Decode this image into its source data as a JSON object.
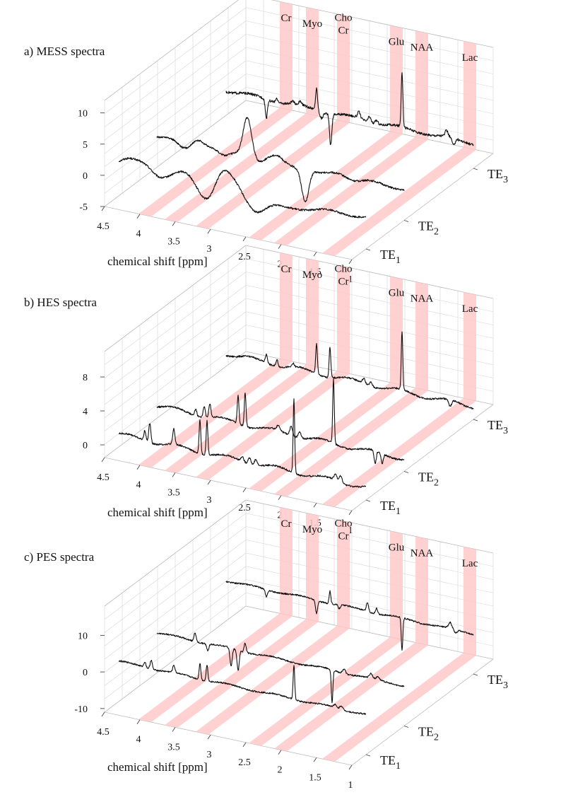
{
  "colors": {
    "band": "#ffc9c9",
    "line": "#111111",
    "grid": "#d6d6d6"
  },
  "te_labels": [
    {
      "base": "TE",
      "sub": "1"
    },
    {
      "base": "TE",
      "sub": "2"
    },
    {
      "base": "TE",
      "sub": "3"
    }
  ],
  "x_label": "chemical shift [ppm]",
  "x_ticks": [
    {
      "v": 4.5,
      "label": "4.5"
    },
    {
      "v": 4.0,
      "label": "4"
    },
    {
      "v": 3.5,
      "label": "3.5"
    },
    {
      "v": 3.0,
      "label": "3"
    },
    {
      "v": 2.5,
      "label": "2.5"
    },
    {
      "v": 2.0,
      "label": "2"
    },
    {
      "v": 1.5,
      "label": "1.5"
    },
    {
      "v": 1.0,
      "label": "1"
    }
  ],
  "metabolites": [
    {
      "name": "Cr",
      "ppm": 3.93,
      "label": "Cr"
    },
    {
      "name": "Myo",
      "ppm": 3.56,
      "label": "Myo"
    },
    {
      "name": "ChoCr",
      "ppm": 3.12,
      "label_top": "Cho",
      "label": "Cr"
    },
    {
      "name": "Glu",
      "ppm": 2.37,
      "label": "Glu"
    },
    {
      "name": "NAA",
      "ppm": 2.01,
      "label": "NAA"
    },
    {
      "name": "Lac",
      "ppm": 1.33,
      "label": "Lac"
    }
  ],
  "chart_data": [
    {
      "type": "line",
      "title": "a) MESS spectra",
      "xlabel": "chemical shift [ppm]",
      "xlim": [
        4.5,
        1.0
      ],
      "zlim": [
        -5,
        12
      ],
      "z_ticks": [
        {
          "v": 10,
          "label": "10"
        },
        {
          "v": 5,
          "label": "5"
        },
        {
          "v": 0,
          "label": "0"
        },
        {
          "v": -5,
          "label": "-5"
        }
      ],
      "series": [
        {
          "name": "TE1",
          "offset": 0,
          "noise": 0.15,
          "peaks": [
            [
              4.35,
              1.0,
              0.12
            ],
            [
              4.1,
              1.3,
              0.12
            ],
            [
              3.95,
              -0.9,
              0.12
            ],
            [
              3.55,
              1.0,
              0.12
            ],
            [
              3.25,
              -2.5,
              0.12
            ],
            [
              3.05,
              2.0,
              0.1
            ],
            [
              2.9,
              1.4,
              0.12
            ],
            [
              2.55,
              -2.5,
              0.14
            ],
            [
              2.2,
              -1.0,
              0.18
            ],
            [
              1.8,
              -0.5,
              0.2
            ]
          ]
        },
        {
          "name": "TE2",
          "offset": 0,
          "noise": 0.15,
          "peaks": [
            [
              4.1,
              -1.2,
              0.1
            ],
            [
              3.93,
              1.2,
              0.09
            ],
            [
              3.55,
              -1.0,
              0.08
            ],
            [
              3.22,
              6.3,
              0.06
            ],
            [
              3.05,
              -0.6,
              0.06
            ],
            [
              2.8,
              0.8,
              0.08
            ],
            [
              2.4,
              -5.2,
              0.05
            ],
            [
              2.2,
              -0.5,
              0.1
            ],
            [
              1.9,
              0.4,
              0.1
            ],
            [
              1.7,
              -0.3,
              0.1
            ]
          ]
        },
        {
          "name": "TE3",
          "offset": -1,
          "noise": 0.2,
          "peaks": [
            [
              3.93,
              -3.0,
              0.015
            ],
            [
              3.78,
              0.6,
              0.02
            ],
            [
              3.56,
              0.4,
              0.02
            ],
            [
              3.45,
              0.5,
              0.02
            ],
            [
              3.22,
              3.5,
              0.014
            ],
            [
              3.15,
              -1.0,
              0.02
            ],
            [
              3.02,
              -5.0,
              0.016
            ],
            [
              2.62,
              1.0,
              0.02
            ],
            [
              2.47,
              0.9,
              0.02
            ],
            [
              2.37,
              0.6,
              0.02
            ],
            [
              2.01,
              8.8,
              0.012
            ],
            [
              1.38,
              0.9,
              0.02
            ],
            [
              1.28,
              -1.2,
              0.02
            ]
          ]
        }
      ]
    },
    {
      "type": "line",
      "title": "b) HES spectra",
      "xlabel": "chemical shift [ppm]",
      "xlim": [
        4.5,
        1.0
      ],
      "zlim": [
        -1.5,
        11
      ],
      "z_ticks": [
        {
          "v": 8,
          "label": "8"
        },
        {
          "v": 4,
          "label": "4"
        },
        {
          "v": 0,
          "label": "0"
        }
      ],
      "series": [
        {
          "name": "TE1",
          "offset": 0,
          "noise": 0.1,
          "peaks": [
            [
              4.13,
              1.2,
              0.015
            ],
            [
              4.06,
              2.3,
              0.015
            ],
            [
              3.72,
              1.8,
              0.015
            ],
            [
              3.35,
              4.0,
              0.012
            ],
            [
              3.25,
              4.0,
              0.012
            ],
            [
              2.75,
              0.6,
              0.02
            ],
            [
              2.65,
              0.8,
              0.02
            ],
            [
              2.56,
              0.7,
              0.02
            ],
            [
              2.02,
              8.7,
              0.011
            ],
            [
              1.43,
              0.7,
              0.02
            ],
            [
              1.36,
              0.8,
              0.02
            ]
          ]
        },
        {
          "name": "TE2",
          "offset": 0,
          "noise": 0.1,
          "peaks": [
            [
              3.95,
              0.8,
              0.015
            ],
            [
              3.83,
              1.3,
              0.015
            ],
            [
              3.75,
              1.6,
              0.015
            ],
            [
              3.35,
              3.3,
              0.012
            ],
            [
              3.25,
              4.0,
              0.012
            ],
            [
              2.78,
              0.6,
              0.02
            ],
            [
              2.6,
              1.1,
              0.02
            ],
            [
              2.48,
              0.8,
              0.02
            ],
            [
              2.0,
              7.6,
              0.011
            ],
            [
              1.41,
              -1.5,
              0.015
            ],
            [
              1.31,
              -1.2,
              0.015
            ]
          ]
        },
        {
          "name": "TE3",
          "offset": 0,
          "noise": 0.1,
          "peaks": [
            [
              3.93,
              1.0,
              0.015
            ],
            [
              3.78,
              0.8,
              0.015
            ],
            [
              3.55,
              0.4,
              0.015
            ],
            [
              3.22,
              3.6,
              0.012
            ],
            [
              3.03,
              3.6,
              0.012
            ],
            [
              2.55,
              0.6,
              0.02
            ],
            [
              2.45,
              0.5,
              0.02
            ],
            [
              2.01,
              6.8,
              0.011
            ],
            [
              1.33,
              -0.8,
              0.02
            ]
          ]
        }
      ]
    },
    {
      "type": "line",
      "title": "c) PES spectra",
      "xlabel": "chemical shift [ppm]",
      "xlim": [
        4.5,
        1.0
      ],
      "zlim": [
        -11,
        18
      ],
      "z_ticks": [
        {
          "v": 10,
          "label": "10"
        },
        {
          "v": 0,
          "label": "0"
        },
        {
          "v": -10,
          "label": "-10"
        }
      ],
      "series": [
        {
          "name": "TE1",
          "offset": 0,
          "noise": 0.2,
          "peaks": [
            [
              4.13,
              1.5,
              0.015
            ],
            [
              4.04,
              2.5,
              0.015
            ],
            [
              3.72,
              2.0,
              0.015
            ],
            [
              3.35,
              4.5,
              0.012
            ],
            [
              3.25,
              4.5,
              0.012
            ],
            [
              2.02,
              9.5,
              0.011
            ],
            [
              1.44,
              0.8,
              0.02
            ],
            [
              1.35,
              1.0,
              0.02
            ]
          ]
        },
        {
          "name": "TE2",
          "offset": 0,
          "noise": 0.2,
          "peaks": [
            [
              3.96,
              2.5,
              0.015
            ],
            [
              3.78,
              -1.8,
              0.015
            ],
            [
              3.45,
              -5.0,
              0.015
            ],
            [
              3.35,
              -5.5,
              0.015
            ],
            [
              3.25,
              2.5,
              0.015
            ],
            [
              2.02,
              -9.0,
              0.011
            ],
            [
              1.85,
              1.3,
              0.02
            ],
            [
              1.47,
              1.2,
              0.02
            ],
            [
              1.37,
              0.8,
              0.02
            ]
          ]
        },
        {
          "name": "TE3",
          "offset": 0,
          "noise": 0.2,
          "peaks": [
            [
              3.93,
              -2.0,
              0.015
            ],
            [
              3.22,
              -3.5,
              0.015
            ],
            [
              3.03,
              3.5,
              0.012
            ],
            [
              2.9,
              -1.0,
              0.015
            ],
            [
              2.5,
              2.5,
              0.015
            ],
            [
              2.37,
              1.5,
              0.015
            ],
            [
              2.01,
              -9.0,
              0.011
            ],
            [
              1.33,
              1.5,
              0.02
            ],
            [
              1.25,
              -1.0,
              0.02
            ]
          ]
        }
      ]
    }
  ]
}
